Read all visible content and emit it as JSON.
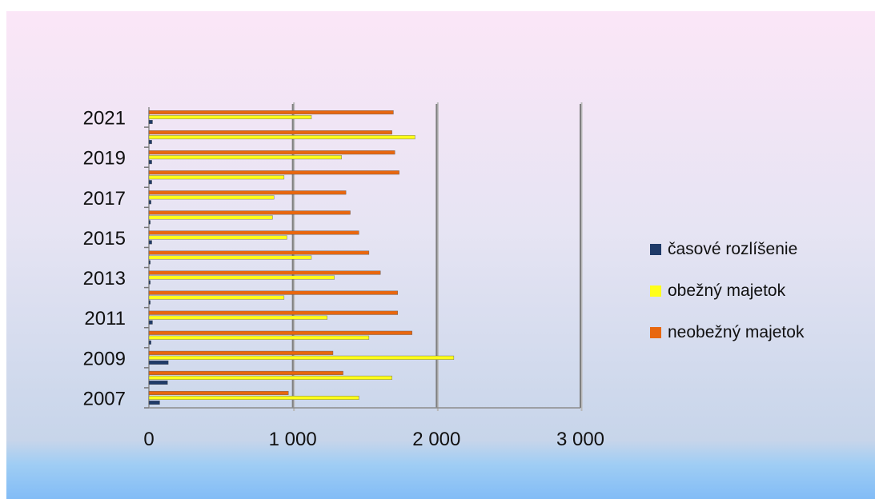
{
  "chart_data": {
    "type": "bar",
    "orientation": "horizontal",
    "categories": [
      "2007",
      "2008",
      "2009",
      "2010",
      "2011",
      "2012",
      "2013",
      "2014",
      "2015",
      "2016",
      "2017",
      "2018",
      "2019",
      "2020",
      "2021"
    ],
    "y_tick_labels": [
      "2007",
      "2009",
      "2011",
      "2013",
      "2015",
      "2017",
      "2019",
      "2021"
    ],
    "x_tick_labels": [
      "0",
      "1 000",
      "2 000",
      "3 000"
    ],
    "xlim": [
      0,
      3000
    ],
    "x_ticks": [
      0,
      1000,
      2000,
      3000
    ],
    "grid": true,
    "legend_position": "right",
    "series": [
      {
        "name": "časové rozlíšenie",
        "color": "#1f3a68",
        "values": [
          75,
          130,
          135,
          15,
          25,
          10,
          10,
          10,
          20,
          10,
          15,
          20,
          20,
          20,
          25
        ]
      },
      {
        "name": "obežný majetok",
        "color": "#ffff1a",
        "values": [
          1460,
          1690,
          2120,
          1530,
          1240,
          940,
          1290,
          1130,
          960,
          860,
          870,
          940,
          1340,
          1850,
          1130
        ]
      },
      {
        "name": "neobežný majetok",
        "color": "#e8670f",
        "values": [
          970,
          1350,
          1280,
          1830,
          1730,
          1730,
          1610,
          1530,
          1460,
          1400,
          1370,
          1740,
          1710,
          1690,
          1700
        ]
      }
    ]
  }
}
